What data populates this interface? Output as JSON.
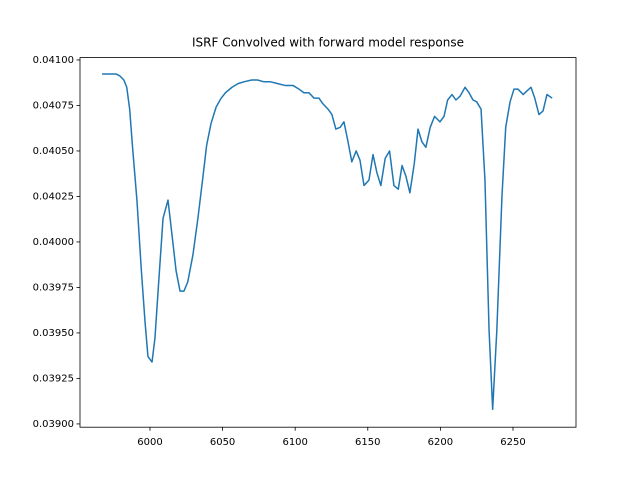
{
  "chart_data": {
    "type": "line",
    "title": "ISRF Convolved with forward model response",
    "x": [
      5967,
      5972.5,
      5976.6,
      5979.3,
      5982,
      5984,
      5986,
      5988,
      5991,
      5994,
      5996.6,
      5998.6,
      6001.4,
      6003.4,
      6006,
      6009,
      6012.4,
      6015,
      6018,
      6020.7,
      6023.4,
      6026,
      6029.6,
      6033,
      6036.5,
      6039,
      6042,
      6045.5,
      6049,
      6052,
      6056.5,
      6060.6,
      6064.7,
      6070,
      6074,
      6078.5,
      6083,
      6088,
      6093,
      6098.5,
      6102.6,
      6106,
      6109.5,
      6113,
      6116.4,
      6119,
      6122.6,
      6125.3,
      6128,
      6131,
      6133.6,
      6136.4,
      6139,
      6142,
      6144.6,
      6147.4,
      6150.8,
      6153.6,
      6156.3,
      6159,
      6162,
      6165,
      6168,
      6171,
      6173.6,
      6176.3,
      6179,
      6182,
      6184.6,
      6187.3,
      6190,
      6193,
      6196,
      6199.7,
      6202.5,
      6205,
      6208,
      6210.7,
      6213.5,
      6217,
      6219.7,
      6222.5,
      6225,
      6228,
      6230.7,
      6233.5,
      6236,
      6238.9,
      6242.4,
      6245,
      6248,
      6250.7,
      6253.4,
      6257,
      6259.6,
      6262.4,
      6265,
      6267.9,
      6270.7,
      6273.4,
      6277
    ],
    "series": [
      {
        "color": "#1f77b4",
        "values": [
          0.040923,
          0.040923,
          0.040923,
          0.040912,
          0.04089,
          0.04085,
          0.04073,
          0.04052,
          0.04023,
          0.03985,
          0.03956,
          0.03937,
          0.03934,
          0.03947,
          0.03978,
          0.04013,
          0.04023,
          0.04005,
          0.03984,
          0.03973,
          0.03973,
          0.03978,
          0.03993,
          0.04013,
          0.04036,
          0.04053,
          0.04065,
          0.04074,
          0.04079,
          0.04082,
          0.04085,
          0.04087,
          0.04088,
          0.04089,
          0.04089,
          0.04088,
          0.04088,
          0.04087,
          0.04086,
          0.04086,
          0.04084,
          0.04082,
          0.04082,
          0.04079,
          0.04079,
          0.04076,
          0.04073,
          0.0407,
          0.04062,
          0.04063,
          0.04066,
          0.04055,
          0.04044,
          0.0405,
          0.04045,
          0.04031,
          0.04034,
          0.04048,
          0.04038,
          0.04031,
          0.04046,
          0.0405,
          0.04031,
          0.04029,
          0.04042,
          0.04036,
          0.04027,
          0.04043,
          0.04062,
          0.04055,
          0.04052,
          0.04063,
          0.04069,
          0.04066,
          0.04069,
          0.04078,
          0.04081,
          0.04078,
          0.0408,
          0.04085,
          0.04082,
          0.04078,
          0.04077,
          0.04073,
          0.04034,
          0.03952,
          0.03908,
          0.03952,
          0.04025,
          0.04063,
          0.04077,
          0.04084,
          0.04084,
          0.04081,
          0.04083,
          0.04085,
          0.04079,
          0.0407,
          0.04072,
          0.04081,
          0.04079
        ]
      }
    ],
    "xlim": [
      5951.8,
      6293.4
    ],
    "xticks": [
      6000,
      6050,
      6100,
      6150,
      6200,
      6250
    ],
    "ylim": [
      0.038982,
      0.041013
    ],
    "yticks": [
      {
        "value": 0.039,
        "label": "0.03900"
      },
      {
        "value": 0.03925,
        "label": "0.03925"
      },
      {
        "value": 0.0395,
        "label": "0.03950"
      },
      {
        "value": 0.03975,
        "label": "0.03975"
      },
      {
        "value": 0.04,
        "label": "0.04000"
      },
      {
        "value": 0.04025,
        "label": "0.04025"
      },
      {
        "value": 0.0405,
        "label": "0.04050"
      },
      {
        "value": 0.04075,
        "label": "0.04075"
      },
      {
        "value": 0.041,
        "label": "0.04100"
      }
    ]
  }
}
